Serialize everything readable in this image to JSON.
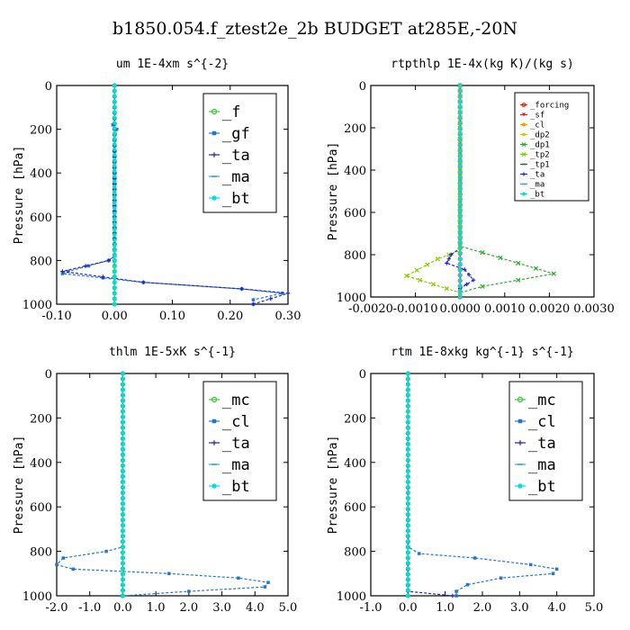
{
  "figure": {
    "title": "b1850.054.f_ztest2e_2b  BUDGET at285E,-20N"
  },
  "chart_data": [
    {
      "type": "line",
      "title": "um  1E-4xm s^{-2}",
      "ylabel": "Pressure [hPa]",
      "xlim": [
        -0.1,
        0.3
      ],
      "xticks": [
        "-0.10",
        "0.00",
        "0.10",
        "0.20",
        "0.30"
      ],
      "ylim": [
        1000,
        0
      ],
      "yticks": [
        "0",
        "200",
        "400",
        "600",
        "800",
        "1000"
      ],
      "legend_size": "large",
      "series": [
        {
          "name": "_f",
          "color": "#33cc33",
          "marker": "o",
          "points": [
            [
              0,
              0
            ],
            [
              0,
              200
            ],
            [
              0,
              400
            ],
            [
              0,
              600
            ],
            [
              0,
              800
            ],
            [
              0,
              900
            ],
            [
              0,
              1000
            ]
          ]
        },
        {
          "name": "_gf",
          "color": "#2277cc",
          "marker": "s",
          "points": [
            [
              0,
              0
            ],
            [
              0,
              150
            ],
            [
              -0.003,
              180
            ],
            [
              0.004,
              200
            ],
            [
              0.001,
              220
            ],
            [
              0,
              300
            ],
            [
              0,
              780
            ],
            [
              -0.01,
              800
            ],
            [
              -0.08,
              850
            ],
            [
              -0.09,
              860
            ],
            [
              0.05,
              900
            ],
            [
              0.22,
              930
            ],
            [
              0.29,
              950
            ],
            [
              0.24,
              980
            ],
            [
              0.24,
              1000
            ]
          ]
        },
        {
          "name": "_ta",
          "color": "#2222cc",
          "marker": "+",
          "points": [
            [
              0,
              0
            ],
            [
              0,
              700
            ],
            [
              0,
              780
            ],
            [
              -0.01,
              800
            ],
            [
              -0.09,
              850
            ],
            [
              0.05,
              900
            ],
            [
              0.22,
              930
            ],
            [
              0.3,
              950
            ],
            [
              0.24,
              1000
            ]
          ]
        },
        {
          "name": "_ma",
          "color": "#3399ff",
          "marker": "-",
          "points": [
            [
              0,
              0
            ],
            [
              0,
              1000
            ]
          ]
        },
        {
          "name": "_bt",
          "color": "#00dddd",
          "marker": "*",
          "points": [
            [
              0,
              0
            ],
            [
              0,
              1000
            ]
          ]
        }
      ]
    },
    {
      "type": "line",
      "title": "rtpthlp  1E-4x(kg K)/(kg s)",
      "ylabel": "Pressure [hPa]",
      "xlim": [
        -0.002,
        0.003
      ],
      "xticks": [
        "-0.0020",
        "-0.0010",
        "0.0000",
        "0.0010",
        "0.0020",
        "0.0030"
      ],
      "ylim": [
        1000,
        0
      ],
      "yticks": [
        "0",
        "200",
        "400",
        "600",
        "800",
        "1000"
      ],
      "legend_size": "small",
      "series": [
        {
          "name": "_forcing",
          "color": "#dd2222",
          "marker": "o",
          "points": [
            [
              0,
              0
            ],
            [
              0,
              1000
            ]
          ]
        },
        {
          "name": "_sf",
          "color": "#dd2222",
          "marker": "v",
          "points": [
            [
              0,
              0
            ],
            [
              0,
              1000
            ]
          ]
        },
        {
          "name": "_cl",
          "color": "#ff9900",
          "marker": "*",
          "points": [
            [
              0,
              0
            ],
            [
              0,
              1000
            ]
          ]
        },
        {
          "name": "_dp2",
          "color": "#cccc00",
          "marker": "s",
          "points": [
            [
              0,
              0
            ],
            [
              0,
              1000
            ]
          ]
        },
        {
          "name": "_dp1",
          "color": "#33aa33",
          "marker": "x",
          "points": [
            [
              0,
              0
            ],
            [
              0,
              760
            ],
            [
              0.0005,
              790
            ],
            [
              0.0021,
              890
            ],
            [
              0.0005,
              950
            ],
            [
              0,
              980
            ]
          ]
        },
        {
          "name": "_tp2",
          "color": "#88cc00",
          "marker": "x",
          "points": [
            [
              0,
              0
            ],
            [
              0,
              780
            ],
            [
              -0.0005,
              820
            ],
            [
              -0.0012,
              900
            ],
            [
              -0.0006,
              940
            ],
            [
              0,
              980
            ]
          ]
        },
        {
          "name": "_tp1",
          "color": "#336633",
          "marker": "-",
          "points": [
            [
              0,
              0
            ],
            [
              0,
              1000
            ]
          ]
        },
        {
          "name": "_ta",
          "color": "#2222cc",
          "marker": "+",
          "points": [
            [
              0,
              0
            ],
            [
              0,
              770
            ],
            [
              -0.0002,
              800
            ],
            [
              -0.0003,
              840
            ],
            [
              0.0001,
              870
            ],
            [
              0.0003,
              920
            ],
            [
              0,
              960
            ]
          ]
        },
        {
          "name": "_ma",
          "color": "#3399ff",
          "marker": "-",
          "points": [
            [
              0,
              0
            ],
            [
              0,
              1000
            ]
          ]
        },
        {
          "name": "_bt",
          "color": "#00dddd",
          "marker": "*",
          "points": [
            [
              0,
              0
            ],
            [
              0,
              1000
            ]
          ]
        }
      ]
    },
    {
      "type": "line",
      "title": "thlm  1E-5xK s^{-1}",
      "ylabel": "Pressure [hPa]",
      "xlim": [
        -2.0,
        5.0
      ],
      "xticks": [
        "-2.0",
        "-1.0",
        "0.0",
        "1.0",
        "2.0",
        "3.0",
        "4.0",
        "5.0"
      ],
      "ylim": [
        1000,
        0
      ],
      "yticks": [
        "0",
        "200",
        "400",
        "600",
        "800",
        "1000"
      ],
      "legend_size": "large",
      "series": [
        {
          "name": "_mc",
          "color": "#33cc33",
          "marker": "o",
          "points": [
            [
              0,
              0
            ],
            [
              0,
              1000
            ]
          ]
        },
        {
          "name": "_cl",
          "color": "#2277cc",
          "marker": "s",
          "points": [
            [
              0,
              0
            ],
            [
              0,
              780
            ],
            [
              -0.5,
              800
            ],
            [
              -1.8,
              830
            ],
            [
              -2.0,
              860
            ],
            [
              -1.5,
              880
            ],
            [
              1.4,
              900
            ],
            [
              3.5,
              920
            ],
            [
              4.4,
              940
            ],
            [
              4.3,
              960
            ],
            [
              2.0,
              980
            ],
            [
              0,
              1000
            ]
          ]
        },
        {
          "name": "_ta",
          "color": "#2222cc",
          "marker": "+",
          "points": [
            [
              0,
              0
            ],
            [
              0,
              1000
            ]
          ]
        },
        {
          "name": "_ma",
          "color": "#3399ff",
          "marker": "-",
          "points": [
            [
              0,
              0
            ],
            [
              0,
              1000
            ]
          ]
        },
        {
          "name": "_bt",
          "color": "#00dddd",
          "marker": "*",
          "points": [
            [
              0,
              0
            ],
            [
              0,
              1000
            ]
          ]
        }
      ]
    },
    {
      "type": "line",
      "title": "rtm  1E-8xkg kg^{-1} s^{-1}",
      "ylabel": "Pressure [hPa]",
      "xlim": [
        -1.0,
        5.0
      ],
      "xticks": [
        "-1.0",
        "0.0",
        "1.0",
        "2.0",
        "3.0",
        "4.0",
        "5.0"
      ],
      "ylim": [
        1000,
        0
      ],
      "yticks": [
        "0",
        "200",
        "400",
        "600",
        "800",
        "1000"
      ],
      "legend_size": "large",
      "series": [
        {
          "name": "_mc",
          "color": "#33cc33",
          "marker": "o",
          "points": [
            [
              0,
              0
            ],
            [
              0,
              1000
            ]
          ]
        },
        {
          "name": "_cl",
          "color": "#2277cc",
          "marker": "s",
          "points": [
            [
              0,
              0
            ],
            [
              0,
              780
            ],
            [
              0.3,
              810
            ],
            [
              1.8,
              830
            ],
            [
              3.3,
              860
            ],
            [
              4.0,
              880
            ],
            [
              3.9,
              900
            ],
            [
              2.5,
              920
            ],
            [
              1.6,
              950
            ],
            [
              1.3,
              980
            ],
            [
              1.3,
              1000
            ]
          ]
        },
        {
          "name": "_ta",
          "color": "#2222cc",
          "marker": "+",
          "points": [
            [
              0,
              0
            ],
            [
              0,
              980
            ],
            [
              1.2,
              1000
            ]
          ]
        },
        {
          "name": "_ma",
          "color": "#3399ff",
          "marker": "-",
          "points": [
            [
              0,
              0
            ],
            [
              0,
              1000
            ]
          ]
        },
        {
          "name": "_bt",
          "color": "#00dddd",
          "marker": "*",
          "points": [
            [
              0,
              0
            ],
            [
              0,
              1000
            ]
          ]
        }
      ]
    }
  ]
}
